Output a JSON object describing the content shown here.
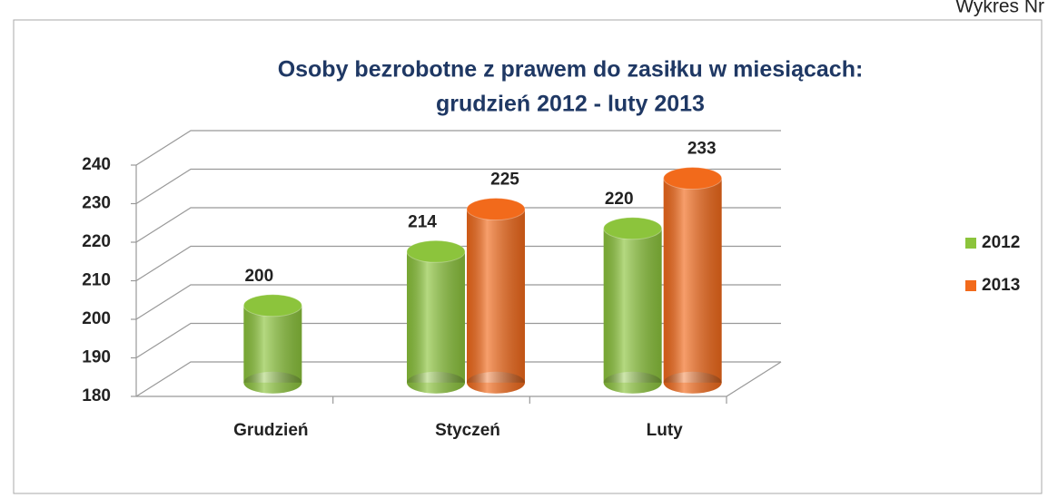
{
  "header": "Wykres Nr",
  "chart_data": {
    "type": "bar3d",
    "title": [
      "Osoby bezrobotne z prawem do zasiłku w miesiącach:",
      "grudzień 2012 - luty 2013"
    ],
    "categories": [
      "Grudzień",
      "Styczeń",
      "Luty"
    ],
    "series": [
      {
        "name": "2012",
        "color": "#8cc43c",
        "values": [
          200,
          214,
          220
        ]
      },
      {
        "name": "2013",
        "color": "#f26a1b",
        "values": [
          null,
          225,
          233
        ]
      }
    ],
    "ylim": [
      180,
      240
    ],
    "yticks": [
      180,
      190,
      200,
      210,
      220,
      230,
      240
    ],
    "grid": true,
    "legend": "right"
  }
}
